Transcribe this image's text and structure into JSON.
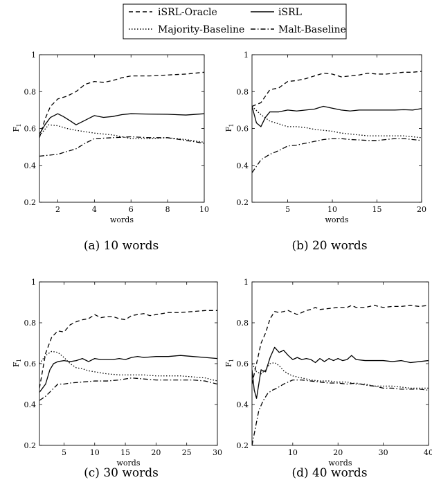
{
  "legend": [
    {
      "name": "iSRL-Oracle",
      "dash": "6,4"
    },
    {
      "name": "iSRL",
      "dash": ""
    },
    {
      "name": "Majority-Baseline",
      "dash": "1.5,2.5"
    },
    {
      "name": "Malt-Baseline",
      "dash": "7,3,1.5,3"
    }
  ],
  "chart_data": [
    {
      "type": "line",
      "caption": "(a) 10 words",
      "xlabel": "words",
      "ylabel": "F",
      "ylabel_sub": "1",
      "xlim": [
        1,
        10
      ],
      "ylim": [
        0.2,
        1.0
      ],
      "xticks": [
        2,
        4,
        6,
        8,
        10
      ],
      "xtick_labels": [
        "2",
        "4",
        "6",
        "8",
        "10"
      ],
      "yticks": [
        0.2,
        0.4,
        0.6,
        0.8,
        1.0
      ],
      "ytick_labels": [
        "0.2",
        "0.4",
        "0.6",
        "0.8",
        "1"
      ],
      "grid": false,
      "series": [
        {
          "name": "iSRL-Oracle",
          "x": [
            1,
            1.3,
            1.6,
            2,
            2.5,
            3,
            3.5,
            4,
            4.5,
            5,
            5.5,
            6,
            7,
            8,
            9,
            10
          ],
          "y": [
            0.55,
            0.65,
            0.72,
            0.76,
            0.775,
            0.8,
            0.84,
            0.855,
            0.85,
            0.86,
            0.875,
            0.885,
            0.885,
            0.89,
            0.895,
            0.905
          ]
        },
        {
          "name": "iSRL",
          "x": [
            1,
            1.3,
            1.6,
            2,
            2.3,
            2.7,
            3,
            3.5,
            4,
            4.5,
            5,
            5.5,
            6,
            7,
            8,
            9,
            10
          ],
          "y": [
            0.57,
            0.62,
            0.66,
            0.68,
            0.665,
            0.64,
            0.62,
            0.645,
            0.67,
            0.66,
            0.665,
            0.675,
            0.68,
            0.678,
            0.677,
            0.673,
            0.68
          ]
        },
        {
          "name": "Majority-Baseline",
          "x": [
            1,
            1.5,
            2,
            2.5,
            3,
            4,
            5,
            6,
            7,
            8,
            9,
            10
          ],
          "y": [
            0.56,
            0.62,
            0.615,
            0.6,
            0.59,
            0.575,
            0.565,
            0.545,
            0.545,
            0.55,
            0.54,
            0.525
          ]
        },
        {
          "name": "Malt-Baseline",
          "x": [
            1,
            1.5,
            2,
            2.5,
            3,
            3.5,
            4,
            5,
            6,
            7,
            8,
            9,
            10
          ],
          "y": [
            0.45,
            0.455,
            0.46,
            0.475,
            0.49,
            0.52,
            0.545,
            0.55,
            0.555,
            0.55,
            0.55,
            0.535,
            0.52
          ]
        }
      ]
    },
    {
      "type": "line",
      "caption": "(b) 20 words",
      "xlabel": "words",
      "ylabel": "F",
      "ylabel_sub": "1",
      "xlim": [
        1,
        20
      ],
      "ylim": [
        0.2,
        1.0
      ],
      "xticks": [
        5,
        10,
        15,
        20
      ],
      "xtick_labels": [
        "5",
        "10",
        "15",
        "20"
      ],
      "yticks": [
        0.2,
        0.4,
        0.6,
        0.8,
        1.0
      ],
      "ytick_labels": [
        "0.2",
        "0.4",
        "0.6",
        "0.8",
        "1"
      ],
      "grid": false,
      "series": [
        {
          "name": "iSRL-Oracle",
          "x": [
            1,
            2,
            3,
            4,
            5,
            6,
            7,
            8,
            9,
            10,
            11,
            12,
            13,
            14,
            15,
            16,
            17,
            18,
            19,
            20
          ],
          "y": [
            0.72,
            0.74,
            0.81,
            0.82,
            0.855,
            0.86,
            0.87,
            0.885,
            0.9,
            0.895,
            0.88,
            0.885,
            0.89,
            0.9,
            0.895,
            0.895,
            0.9,
            0.905,
            0.905,
            0.91
          ]
        },
        {
          "name": "iSRL",
          "x": [
            1,
            1.5,
            2,
            2.5,
            3,
            4,
            5,
            6,
            7,
            8,
            9,
            10,
            11,
            12,
            13,
            14,
            15,
            16,
            17,
            18,
            19,
            20
          ],
          "y": [
            0.72,
            0.63,
            0.61,
            0.66,
            0.69,
            0.69,
            0.7,
            0.695,
            0.7,
            0.705,
            0.72,
            0.71,
            0.7,
            0.695,
            0.7,
            0.7,
            0.7,
            0.7,
            0.7,
            0.702,
            0.7,
            0.708
          ]
        },
        {
          "name": "Majority-Baseline",
          "x": [
            1,
            2,
            3,
            4,
            5,
            6,
            7,
            8,
            9,
            10,
            11,
            12,
            13,
            14,
            15,
            16,
            17,
            18,
            19,
            20
          ],
          "y": [
            0.72,
            0.675,
            0.64,
            0.625,
            0.61,
            0.61,
            0.605,
            0.595,
            0.59,
            0.585,
            0.575,
            0.57,
            0.565,
            0.56,
            0.56,
            0.56,
            0.56,
            0.56,
            0.555,
            0.55
          ]
        },
        {
          "name": "Malt-Baseline",
          "x": [
            1,
            2,
            3,
            4,
            5,
            6,
            7,
            8,
            9,
            10,
            11,
            12,
            13,
            14,
            15,
            16,
            17,
            18,
            19,
            20
          ],
          "y": [
            0.36,
            0.43,
            0.46,
            0.48,
            0.505,
            0.51,
            0.52,
            0.53,
            0.54,
            0.545,
            0.545,
            0.54,
            0.538,
            0.535,
            0.535,
            0.54,
            0.545,
            0.545,
            0.54,
            0.535
          ]
        }
      ]
    },
    {
      "type": "line",
      "caption": "(c) 30 words",
      "xlabel": "words",
      "ylabel": "F",
      "ylabel_sub": "1",
      "xlim": [
        1,
        30
      ],
      "ylim": [
        0.2,
        1.0
      ],
      "xticks": [
        5,
        10,
        15,
        20,
        25,
        30
      ],
      "xtick_labels": [
        "5",
        "10",
        "15",
        "20",
        "25",
        "30"
      ],
      "yticks": [
        0.2,
        0.4,
        0.6,
        0.8,
        1.0
      ],
      "ytick_labels": [
        "0.2",
        "0.4",
        "0.6",
        "0.8",
        "1"
      ],
      "grid": false,
      "series": [
        {
          "name": "iSRL-Oracle",
          "x": [
            1,
            2,
            3,
            4,
            5,
            6,
            7,
            8,
            9,
            10,
            11,
            12,
            13,
            14,
            15,
            16,
            17,
            18,
            19,
            20,
            22,
            24,
            26,
            28,
            30
          ],
          "y": [
            0.48,
            0.65,
            0.73,
            0.76,
            0.755,
            0.79,
            0.805,
            0.815,
            0.82,
            0.84,
            0.825,
            0.83,
            0.83,
            0.82,
            0.815,
            0.835,
            0.84,
            0.845,
            0.835,
            0.84,
            0.85,
            0.85,
            0.855,
            0.86,
            0.86
          ]
        },
        {
          "name": "iSRL",
          "x": [
            1,
            2,
            2.7,
            3.3,
            4,
            5,
            6,
            7,
            8,
            9,
            10,
            11,
            12,
            13,
            14,
            15,
            16,
            17,
            18,
            20,
            22,
            24,
            26,
            28,
            30
          ],
          "y": [
            0.46,
            0.5,
            0.57,
            0.6,
            0.61,
            0.615,
            0.61,
            0.615,
            0.625,
            0.61,
            0.625,
            0.62,
            0.62,
            0.62,
            0.625,
            0.62,
            0.63,
            0.635,
            0.63,
            0.635,
            0.635,
            0.64,
            0.635,
            0.63,
            0.625
          ]
        },
        {
          "name": "Majority-Baseline",
          "x": [
            1,
            2,
            3,
            4,
            5,
            6,
            7,
            8,
            9,
            10,
            12,
            14,
            16,
            18,
            20,
            22,
            24,
            26,
            28,
            30
          ],
          "y": [
            0.6,
            0.64,
            0.66,
            0.655,
            0.63,
            0.6,
            0.58,
            0.575,
            0.565,
            0.56,
            0.55,
            0.545,
            0.545,
            0.545,
            0.54,
            0.54,
            0.54,
            0.535,
            0.53,
            0.515
          ]
        },
        {
          "name": "Malt-Baseline",
          "x": [
            1,
            2,
            3,
            4,
            5,
            6,
            8,
            10,
            12,
            14,
            16,
            18,
            20,
            22,
            24,
            26,
            28,
            30
          ],
          "y": [
            0.42,
            0.44,
            0.47,
            0.5,
            0.5,
            0.505,
            0.51,
            0.515,
            0.515,
            0.52,
            0.53,
            0.525,
            0.52,
            0.52,
            0.52,
            0.52,
            0.515,
            0.5
          ]
        }
      ]
    },
    {
      "type": "line",
      "caption": "(d) 40 words",
      "xlabel": "words",
      "ylabel": "F",
      "ylabel_sub": "1",
      "xlim": [
        1,
        40
      ],
      "ylim": [
        0.2,
        1.0
      ],
      "xticks": [
        10,
        20,
        30,
        40
      ],
      "xtick_labels": [
        "10",
        "20",
        "30",
        "40"
      ],
      "yticks": [
        0.2,
        0.4,
        0.6,
        0.8,
        1.0
      ],
      "ytick_labels": [
        "0.2",
        "0.4",
        "0.6",
        "0.8",
        "1"
      ],
      "grid": false,
      "series": [
        {
          "name": "iSRL-Oracle",
          "x": [
            1,
            2,
            3,
            4,
            5,
            6,
            7,
            8,
            9,
            10,
            11,
            12,
            13,
            14,
            15,
            16,
            18,
            20,
            22,
            23,
            24,
            26,
            28,
            30,
            32,
            34,
            36,
            38,
            40
          ],
          "y": [
            0.5,
            0.6,
            0.7,
            0.75,
            0.82,
            0.855,
            0.85,
            0.855,
            0.86,
            0.85,
            0.84,
            0.85,
            0.86,
            0.865,
            0.875,
            0.865,
            0.87,
            0.875,
            0.875,
            0.885,
            0.875,
            0.875,
            0.885,
            0.875,
            0.88,
            0.88,
            0.885,
            0.88,
            0.885
          ]
        },
        {
          "name": "iSRL",
          "x": [
            1,
            1.5,
            2,
            3,
            4,
            5,
            6,
            7,
            8,
            9,
            10,
            11,
            12,
            13,
            14,
            15,
            16,
            17,
            18,
            19,
            20,
            21,
            22,
            23,
            24,
            26,
            28,
            30,
            32,
            34,
            36,
            38,
            40
          ],
          "y": [
            0.57,
            0.47,
            0.43,
            0.57,
            0.56,
            0.63,
            0.68,
            0.655,
            0.665,
            0.64,
            0.62,
            0.63,
            0.62,
            0.625,
            0.62,
            0.605,
            0.625,
            0.61,
            0.625,
            0.615,
            0.625,
            0.615,
            0.62,
            0.64,
            0.62,
            0.615,
            0.615,
            0.615,
            0.61,
            0.615,
            0.605,
            0.61,
            0.615
          ]
        },
        {
          "name": "Majority-Baseline",
          "x": [
            1,
            2,
            3,
            4,
            5,
            6,
            7,
            8,
            9,
            10,
            12,
            14,
            16,
            18,
            20,
            22,
            24,
            26,
            28,
            30,
            32,
            34,
            36,
            38,
            40
          ],
          "y": [
            0.6,
            0.56,
            0.55,
            0.57,
            0.6,
            0.605,
            0.59,
            0.565,
            0.55,
            0.54,
            0.53,
            0.52,
            0.515,
            0.515,
            0.51,
            0.51,
            0.5,
            0.5,
            0.49,
            0.49,
            0.49,
            0.485,
            0.48,
            0.48,
            0.48
          ]
        },
        {
          "name": "Malt-Baseline",
          "x": [
            1,
            1.7,
            2.5,
            3.5,
            4.5,
            5.5,
            6.5,
            8,
            10,
            12,
            14,
            16,
            18,
            20,
            22,
            24,
            26,
            28,
            30,
            32,
            34,
            36,
            38,
            40
          ],
          "y": [
            0.2,
            0.28,
            0.37,
            0.42,
            0.455,
            0.47,
            0.48,
            0.5,
            0.52,
            0.52,
            0.515,
            0.51,
            0.505,
            0.505,
            0.5,
            0.505,
            0.495,
            0.49,
            0.48,
            0.48,
            0.475,
            0.475,
            0.475,
            0.47
          ]
        }
      ]
    }
  ]
}
